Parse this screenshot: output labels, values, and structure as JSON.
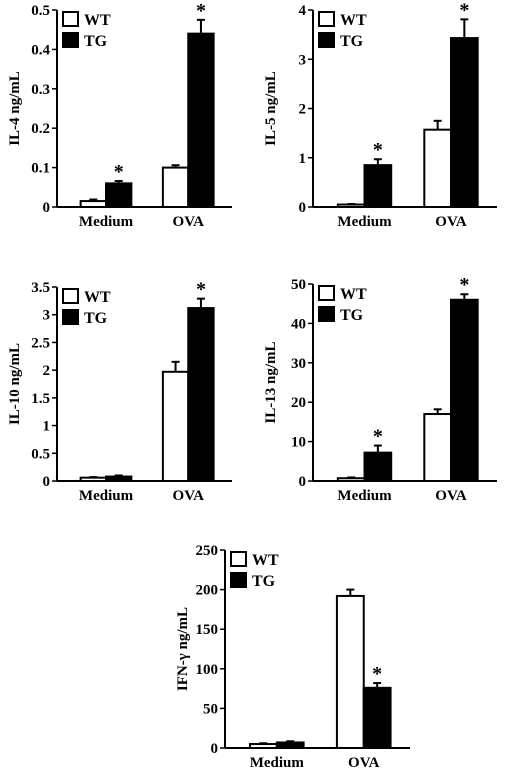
{
  "chart_data": [
    {
      "type": "bar",
      "categories": [
        "Medium",
        "OVA"
      ],
      "ylabel": "IL-4 ng/mL",
      "ylim": [
        0,
        0.5
      ],
      "yticks": [
        "0",
        "0.1",
        "0.2",
        "0.3",
        "0.4",
        "0.5"
      ],
      "legend": [
        "WT",
        "TG"
      ],
      "legend_position": "top-left",
      "series": [
        {
          "name": "WT",
          "fill": "#ffffff",
          "values": [
            0.015,
            0.1
          ],
          "errors": [
            0.004,
            0.006
          ],
          "stars": [
            "",
            ""
          ]
        },
        {
          "name": "TG",
          "fill": "#000000",
          "values": [
            0.06,
            0.44
          ],
          "errors": [
            0.006,
            0.035
          ],
          "stars": [
            "*",
            "*"
          ]
        }
      ]
    },
    {
      "type": "bar",
      "categories": [
        "Medium",
        "OVA"
      ],
      "ylabel": "IL-5 ng/mL",
      "ylim": [
        0,
        4
      ],
      "yticks": [
        "0",
        "1",
        "2",
        "3",
        "4"
      ],
      "legend": [
        "WT",
        "TG"
      ],
      "legend_position": "top-left",
      "series": [
        {
          "name": "WT",
          "fill": "#ffffff",
          "values": [
            0.05,
            1.57
          ],
          "errors": [
            0.01,
            0.18
          ],
          "stars": [
            "",
            ""
          ]
        },
        {
          "name": "TG",
          "fill": "#000000",
          "values": [
            0.85,
            3.43
          ],
          "errors": [
            0.12,
            0.38
          ],
          "stars": [
            "*",
            "*"
          ]
        }
      ]
    },
    {
      "type": "bar",
      "categories": [
        "Medium",
        "OVA"
      ],
      "ylabel": "IL-10 ng/mL",
      "ylim": [
        0,
        3.5
      ],
      "yticks": [
        "0",
        "0.5",
        "1",
        "1.5",
        "2",
        "2.5",
        "3",
        "3.5"
      ],
      "legend": [
        "WT",
        "TG"
      ],
      "legend_position": "top-left",
      "series": [
        {
          "name": "WT",
          "fill": "#ffffff",
          "values": [
            0.06,
            1.97
          ],
          "errors": [
            0.01,
            0.18
          ],
          "stars": [
            "",
            ""
          ]
        },
        {
          "name": "TG",
          "fill": "#000000",
          "values": [
            0.08,
            3.12
          ],
          "errors": [
            0.02,
            0.17
          ],
          "stars": [
            "",
            "*"
          ]
        }
      ]
    },
    {
      "type": "bar",
      "categories": [
        "Medium",
        "OVA"
      ],
      "ylabel": "IL-13 ng/mL",
      "ylim": [
        0,
        50
      ],
      "yticks": [
        "0",
        "10",
        "20",
        "30",
        "40",
        "50"
      ],
      "legend": [
        "WT",
        "TG"
      ],
      "legend_position": "top-left",
      "series": [
        {
          "name": "WT",
          "fill": "#ffffff",
          "values": [
            0.7,
            17
          ],
          "errors": [
            0.2,
            1.2
          ],
          "stars": [
            "",
            ""
          ]
        },
        {
          "name": "TG",
          "fill": "#000000",
          "values": [
            7.2,
            46
          ],
          "errors": [
            1.8,
            1.4
          ],
          "stars": [
            "*",
            "*"
          ]
        }
      ]
    },
    {
      "type": "bar",
      "categories": [
        "Medium",
        "OVA"
      ],
      "ylabel": "IFN-γ ng/mL",
      "ylim": [
        0,
        250
      ],
      "yticks": [
        "0",
        "50",
        "100",
        "150",
        "200",
        "250"
      ],
      "legend": [
        "WT",
        "TG"
      ],
      "legend_position": "top-left",
      "series": [
        {
          "name": "WT",
          "fill": "#ffffff",
          "values": [
            5,
            192
          ],
          "errors": [
            1,
            8
          ],
          "stars": [
            "",
            ""
          ]
        },
        {
          "name": "TG",
          "fill": "#000000",
          "values": [
            7,
            76
          ],
          "errors": [
            1.5,
            6
          ],
          "stars": [
            "",
            "*"
          ]
        }
      ]
    }
  ]
}
